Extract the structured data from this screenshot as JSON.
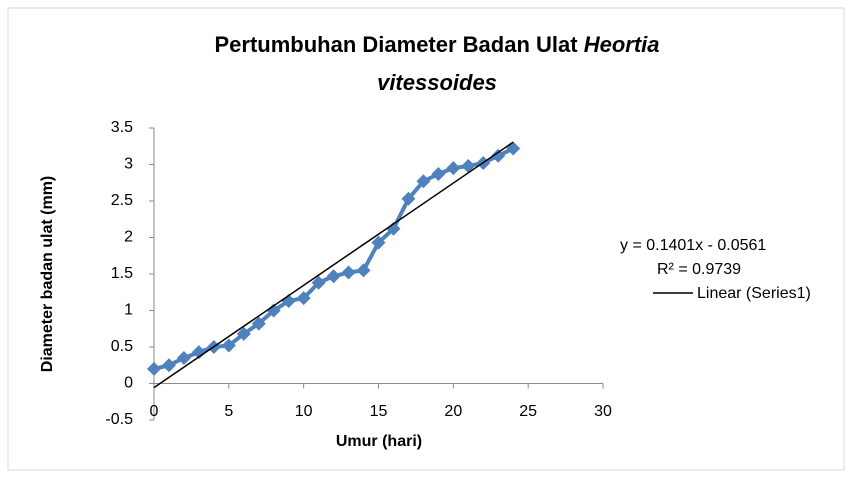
{
  "chart_data": {
    "type": "line",
    "title": "Pertumbuhan Diameter Badan Ulat",
    "title_italic": [
      "Heortia",
      "vitessoides"
    ],
    "x_label": "Umur (hari)",
    "y_label": "Diameter badan ulat (mm)",
    "x": [
      0,
      1,
      2,
      3,
      4,
      5,
      6,
      7,
      8,
      9,
      10,
      11,
      12,
      13,
      14,
      15,
      16,
      17,
      18,
      19,
      20,
      21,
      22,
      23,
      24
    ],
    "series": [
      {
        "name": "Series1",
        "color": "#4f81bd",
        "values": [
          0.2,
          0.25,
          0.35,
          0.43,
          0.5,
          0.52,
          0.68,
          0.82,
          1.0,
          1.13,
          1.17,
          1.38,
          1.47,
          1.52,
          1.55,
          1.93,
          2.12,
          2.53,
          2.77,
          2.87,
          2.95,
          2.98,
          3.02,
          3.12,
          3.22
        ]
      }
    ],
    "trendline": {
      "name": "Linear (Series1)",
      "slope": 0.1401,
      "intercept": -0.0561,
      "color": "#000000",
      "equation": "y = 0.1401x - 0.0561",
      "r2_label": "R² = 0.9739"
    },
    "xlim": [
      0,
      30
    ],
    "xticks": [
      0,
      5,
      10,
      15,
      20,
      25,
      30
    ],
    "ylim": [
      -0.5,
      3.5
    ],
    "yticks": [
      -0.5,
      0,
      0.5,
      1,
      1.5,
      2,
      2.5,
      3,
      3.5
    ],
    "grid": false
  }
}
